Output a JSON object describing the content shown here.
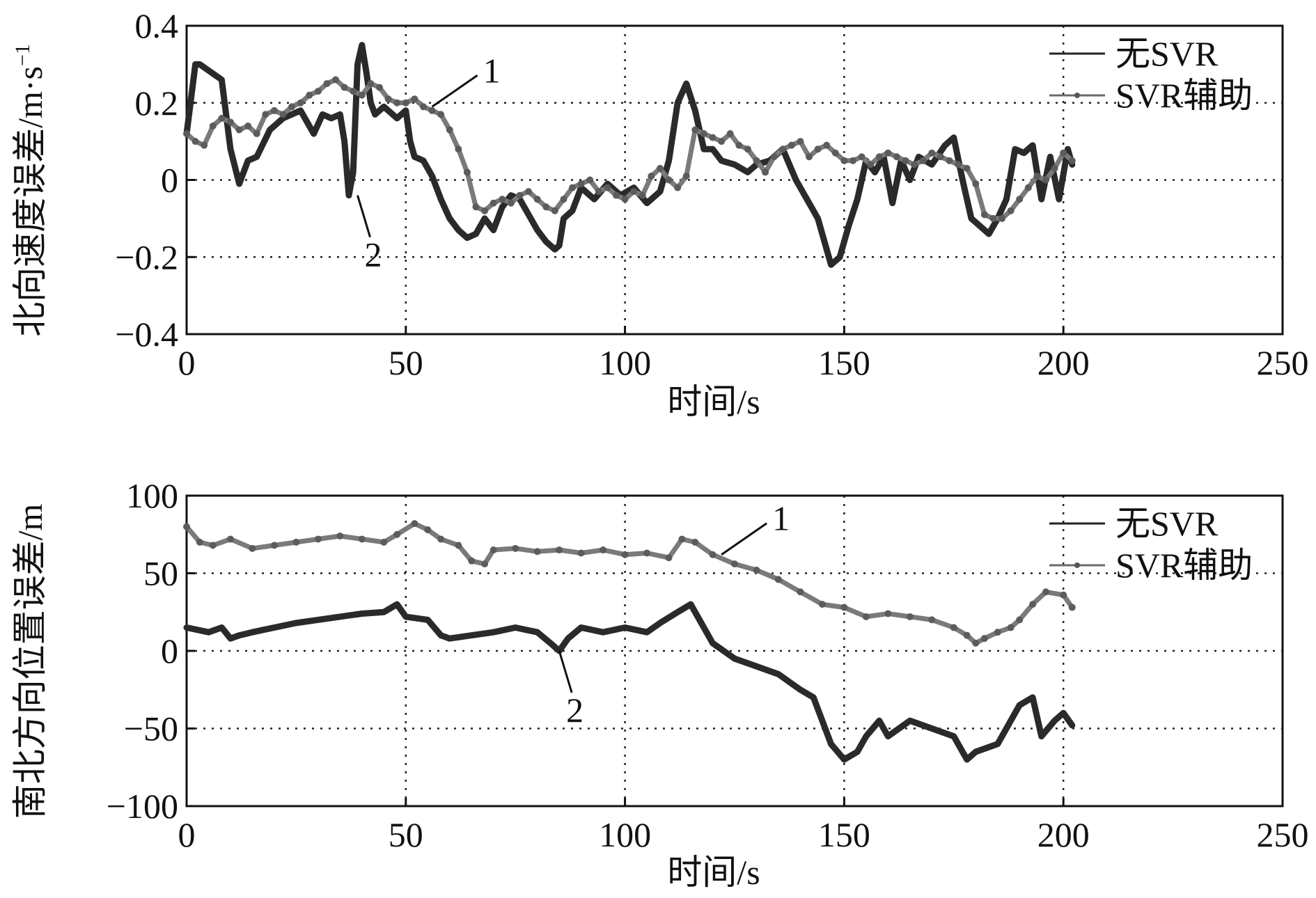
{
  "chart_data": [
    {
      "type": "line",
      "title": "",
      "xlabel": "时间/s",
      "ylabel": "北向速度误差/m·s",
      "ylabel_superscript": "−1",
      "xlim": [
        0,
        250
      ],
      "ylim": [
        -0.4,
        0.4
      ],
      "x_ticks": [
        0,
        50,
        100,
        150,
        200,
        250
      ],
      "x_tick_labels": [
        "0",
        "50",
        "100",
        "150",
        "200",
        "250"
      ],
      "y_ticks": [
        -0.4,
        -0.2,
        0,
        0.2,
        0.4
      ],
      "y_tick_labels": [
        "−0.4",
        "−0.2",
        "0",
        "0.2",
        "0.4"
      ],
      "grid": true,
      "legend_position": "top-right",
      "series": [
        {
          "name": "无SVR",
          "color": "#2a2a2a",
          "marker": "none",
          "x": [
            0,
            2,
            3,
            8,
            10,
            12,
            14,
            16,
            19,
            22,
            26,
            29,
            31,
            33,
            35,
            36,
            37,
            38,
            39,
            40,
            41,
            42,
            43,
            45,
            48,
            50,
            51,
            52,
            54,
            56,
            58,
            60,
            62,
            64,
            66,
            68,
            70,
            72,
            74,
            76,
            78,
            80,
            82,
            84,
            85,
            86,
            88,
            90,
            93,
            96,
            99,
            102,
            105,
            108,
            110,
            112,
            114,
            116,
            118,
            120,
            122,
            125,
            128,
            130,
            133,
            136,
            139,
            142,
            144,
            146,
            147,
            149,
            151,
            153,
            155,
            157,
            159,
            161,
            163,
            165,
            167,
            170,
            173,
            175,
            177,
            179,
            181,
            183,
            185,
            187,
            189,
            191,
            193,
            195,
            197,
            199,
            201,
            202
          ],
          "y": [
            0.12,
            0.3,
            0.3,
            0.26,
            0.08,
            -0.01,
            0.05,
            0.06,
            0.13,
            0.16,
            0.18,
            0.12,
            0.17,
            0.16,
            0.17,
            0.1,
            -0.04,
            0.02,
            0.3,
            0.35,
            0.28,
            0.2,
            0.17,
            0.19,
            0.16,
            0.18,
            0.1,
            0.06,
            0.05,
            0.01,
            -0.05,
            -0.1,
            -0.13,
            -0.15,
            -0.14,
            -0.1,
            -0.13,
            -0.07,
            -0.04,
            -0.05,
            -0.09,
            -0.13,
            -0.16,
            -0.18,
            -0.17,
            -0.1,
            -0.08,
            -0.02,
            -0.05,
            -0.01,
            -0.04,
            -0.02,
            -0.06,
            -0.03,
            0.05,
            0.2,
            0.25,
            0.18,
            0.08,
            0.08,
            0.05,
            0.04,
            0.02,
            0.04,
            0.05,
            0.08,
            0.0,
            -0.06,
            -0.1,
            -0.18,
            -0.22,
            -0.2,
            -0.12,
            -0.05,
            0.05,
            0.02,
            0.06,
            -0.06,
            0.05,
            0.0,
            0.06,
            0.04,
            0.09,
            0.11,
            0.0,
            -0.1,
            -0.12,
            -0.14,
            -0.1,
            -0.05,
            0.08,
            0.07,
            0.09,
            -0.05,
            0.06,
            -0.05,
            0.08,
            0.04
          ]
        },
        {
          "name": "SVR辅助",
          "color": "#7a7a7a",
          "marker": "dot",
          "x": [
            0,
            2,
            4,
            6,
            8,
            10,
            12,
            14,
            16,
            18,
            20,
            22,
            24,
            26,
            28,
            30,
            32,
            34,
            36,
            38,
            40,
            42,
            44,
            46,
            48,
            50,
            52,
            54,
            56,
            58,
            60,
            62,
            64,
            66,
            68,
            70,
            72,
            74,
            76,
            78,
            80,
            82,
            84,
            86,
            88,
            90,
            92,
            94,
            96,
            98,
            100,
            102,
            104,
            106,
            108,
            110,
            112,
            114,
            116,
            118,
            120,
            122,
            124,
            126,
            128,
            130,
            132,
            134,
            136,
            138,
            140,
            142,
            144,
            146,
            148,
            150,
            152,
            154,
            156,
            158,
            160,
            162,
            164,
            166,
            168,
            170,
            172,
            174,
            176,
            178,
            180,
            182,
            184,
            186,
            188,
            190,
            192,
            194,
            196,
            198,
            200,
            202
          ],
          "y": [
            0.12,
            0.1,
            0.09,
            0.14,
            0.16,
            0.15,
            0.13,
            0.14,
            0.12,
            0.17,
            0.18,
            0.17,
            0.19,
            0.2,
            0.22,
            0.23,
            0.25,
            0.26,
            0.24,
            0.23,
            0.22,
            0.25,
            0.24,
            0.21,
            0.2,
            0.2,
            0.21,
            0.19,
            0.18,
            0.17,
            0.13,
            0.08,
            0.02,
            -0.07,
            -0.08,
            -0.06,
            -0.05,
            -0.06,
            -0.04,
            -0.03,
            -0.05,
            -0.07,
            -0.08,
            -0.05,
            -0.02,
            -0.01,
            0.0,
            -0.03,
            -0.02,
            -0.04,
            -0.05,
            -0.03,
            -0.04,
            0.01,
            0.03,
            0.0,
            -0.02,
            0.01,
            0.13,
            0.12,
            0.11,
            0.1,
            0.12,
            0.09,
            0.08,
            0.05,
            0.02,
            0.06,
            0.08,
            0.09,
            0.1,
            0.06,
            0.08,
            0.09,
            0.07,
            0.05,
            0.05,
            0.06,
            0.04,
            0.06,
            0.07,
            0.06,
            0.05,
            0.04,
            0.05,
            0.07,
            0.06,
            0.05,
            0.04,
            0.03,
            -0.01,
            -0.09,
            -0.1,
            -0.1,
            -0.08,
            -0.05,
            -0.02,
            0.01,
            0.0,
            0.03,
            0.07,
            0.05
          ]
        }
      ],
      "annotations": [
        {
          "text": "1",
          "series": "SVR辅助",
          "x": 56,
          "y": 0.19
        },
        {
          "text": "2",
          "series": "无SVR",
          "x": 39,
          "y": -0.04
        }
      ]
    },
    {
      "type": "line",
      "title": "",
      "xlabel": "时间/s",
      "ylabel": "南北方向位置误差/m",
      "xlim": [
        0,
        250
      ],
      "ylim": [
        -100,
        100
      ],
      "x_ticks": [
        0,
        50,
        100,
        150,
        200,
        250
      ],
      "x_tick_labels": [
        "0",
        "50",
        "100",
        "150",
        "200",
        "250"
      ],
      "y_ticks": [
        -100,
        -50,
        0,
        50,
        100
      ],
      "y_tick_labels": [
        "−100",
        "−50",
        "0",
        "50",
        "100"
      ],
      "grid": true,
      "legend_position": "top-right",
      "series": [
        {
          "name": "无SVR",
          "color": "#2a2a2a",
          "marker": "none",
          "x": [
            0,
            5,
            8,
            10,
            12,
            15,
            20,
            25,
            30,
            35,
            40,
            45,
            48,
            50,
            55,
            58,
            60,
            65,
            70,
            75,
            80,
            83,
            85,
            87,
            90,
            95,
            100,
            105,
            108,
            112,
            115,
            117,
            120,
            125,
            130,
            135,
            140,
            143,
            145,
            147,
            150,
            153,
            155,
            158,
            160,
            165,
            170,
            175,
            178,
            180,
            185,
            190,
            193,
            195,
            198,
            200,
            202
          ],
          "y": [
            15,
            12,
            15,
            8,
            10,
            12,
            15,
            18,
            20,
            22,
            24,
            25,
            30,
            22,
            20,
            10,
            8,
            10,
            12,
            15,
            12,
            5,
            0,
            8,
            15,
            12,
            15,
            12,
            18,
            25,
            30,
            20,
            5,
            -5,
            -10,
            -15,
            -25,
            -30,
            -45,
            -60,
            -70,
            -65,
            -55,
            -45,
            -55,
            -45,
            -50,
            -55,
            -70,
            -65,
            -60,
            -35,
            -30,
            -55,
            -45,
            -40,
            -48
          ]
        },
        {
          "name": "SVR辅助",
          "color": "#7a7a7a",
          "marker": "dot",
          "x": [
            0,
            3,
            6,
            10,
            15,
            20,
            25,
            30,
            35,
            40,
            45,
            48,
            52,
            55,
            58,
            62,
            65,
            68,
            70,
            75,
            80,
            85,
            90,
            95,
            100,
            105,
            110,
            113,
            116,
            120,
            125,
            130,
            135,
            140,
            145,
            150,
            155,
            160,
            165,
            170,
            175,
            178,
            180,
            182,
            185,
            188,
            190,
            193,
            196,
            200,
            202
          ],
          "y": [
            80,
            70,
            68,
            72,
            66,
            68,
            70,
            72,
            74,
            72,
            70,
            75,
            82,
            78,
            72,
            68,
            58,
            56,
            65,
            66,
            64,
            65,
            63,
            65,
            62,
            63,
            60,
            72,
            70,
            62,
            56,
            52,
            46,
            38,
            30,
            28,
            22,
            24,
            22,
            20,
            15,
            10,
            5,
            8,
            12,
            15,
            20,
            30,
            38,
            36,
            28
          ]
        }
      ],
      "annotations": [
        {
          "text": "1",
          "series": "SVR辅助",
          "x": 122,
          "y": 62
        },
        {
          "text": "2",
          "series": "无SVR",
          "x": 85,
          "y": 0
        }
      ]
    }
  ]
}
